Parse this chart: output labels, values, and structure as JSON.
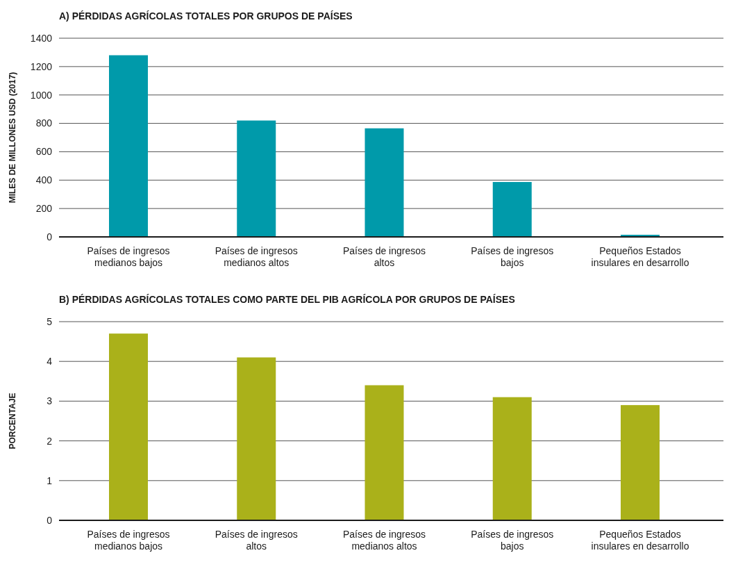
{
  "chart_data": [
    {
      "type": "bar",
      "title": "A) PÉRDIDAS AGRÍCOLAS TOTALES POR GRUPOS DE PAÍSES",
      "ylabel": "MILES DE MILLONES USD (2017)",
      "categories": [
        "Países de ingresos medianos bajos",
        "Países de ingresos medianos altos",
        "Países de ingresos altos",
        "Países de ingresos bajos",
        "Pequeños Estados insulares en desarrollo"
      ],
      "values": [
        1280,
        820,
        765,
        387,
        15
      ],
      "color": "#009aaa",
      "ylim": [
        0,
        1400
      ],
      "yticks": [
        0,
        200,
        400,
        600,
        800,
        1000,
        1200,
        1400
      ],
      "grid": "y"
    },
    {
      "type": "bar",
      "title": "B) PÉRDIDAS AGRÍCOLAS TOTALES COMO PARTE DEL PIB AGRÍCOLA POR GRUPOS DE PAÍSES",
      "ylabel": "PORCENTAJE",
      "categories": [
        "Países de ingresos medianos bajos",
        "Países de ingresos altos",
        "Países de ingresos medianos altos",
        "Países de ingresos bajos",
        "Pequeños Estados insulares en desarrollo"
      ],
      "values": [
        4.7,
        4.1,
        3.4,
        3.1,
        2.9
      ],
      "color": "#aab11a",
      "ylim": [
        0,
        5
      ],
      "yticks": [
        0,
        1,
        2,
        3,
        4,
        5
      ],
      "grid": "y"
    }
  ]
}
